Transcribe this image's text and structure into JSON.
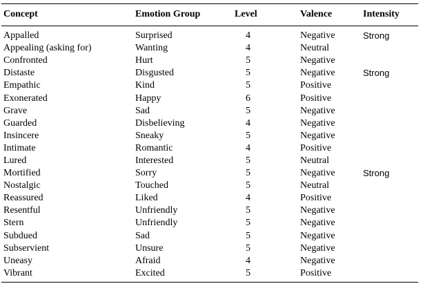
{
  "table": {
    "headers": {
      "concept": "Concept",
      "group": "Emotion Group",
      "level": "Level",
      "valence": "Valence",
      "intensity": "Intensity"
    },
    "rows": [
      {
        "concept": "Appalled",
        "group": "Surprised",
        "level": "4",
        "valence": "Negative",
        "intensity": "Strong"
      },
      {
        "concept": "Appealing (asking for)",
        "group": "Wanting",
        "level": "4",
        "valence": "Neutral",
        "intensity": ""
      },
      {
        "concept": "Confronted",
        "group": "Hurt",
        "level": "5",
        "valence": "Negative",
        "intensity": ""
      },
      {
        "concept": "Distaste",
        "group": "Disgusted",
        "level": "5",
        "valence": "Negative",
        "intensity": "Strong"
      },
      {
        "concept": "Empathic",
        "group": "Kind",
        "level": "5",
        "valence": "Positive",
        "intensity": ""
      },
      {
        "concept": "Exonerated",
        "group": "Happy",
        "level": "6",
        "valence": "Positive",
        "intensity": ""
      },
      {
        "concept": "Grave",
        "group": "Sad",
        "level": "5",
        "valence": "Negative",
        "intensity": ""
      },
      {
        "concept": "Guarded",
        "group": "Disbelieving",
        "level": "4",
        "valence": "Negative",
        "intensity": ""
      },
      {
        "concept": "Insincere",
        "group": "Sneaky",
        "level": "5",
        "valence": "Negative",
        "intensity": ""
      },
      {
        "concept": "Intimate",
        "group": "Romantic",
        "level": "4",
        "valence": "Positive",
        "intensity": ""
      },
      {
        "concept": "Lured",
        "group": "Interested",
        "level": "5",
        "valence": "Neutral",
        "intensity": ""
      },
      {
        "concept": "Mortified",
        "group": "Sorry",
        "level": "5",
        "valence": "Negative",
        "intensity": "Strong"
      },
      {
        "concept": "Nostalgic",
        "group": "Touched",
        "level": "5",
        "valence": "Neutral",
        "intensity": ""
      },
      {
        "concept": "Reassured",
        "group": "Liked",
        "level": "4",
        "valence": "Positive",
        "intensity": ""
      },
      {
        "concept": "Resentful",
        "group": "Unfriendly",
        "level": "5",
        "valence": "Negative",
        "intensity": ""
      },
      {
        "concept": "Stern",
        "group": "Unfriendly",
        "level": "5",
        "valence": "Negative",
        "intensity": ""
      },
      {
        "concept": "Subdued",
        "group": "Sad",
        "level": "5",
        "valence": "Negative",
        "intensity": ""
      },
      {
        "concept": "Subservient",
        "group": "Unsure",
        "level": "5",
        "valence": "Negative",
        "intensity": ""
      },
      {
        "concept": "Uneasy",
        "group": "Afraid",
        "level": "4",
        "valence": "Negative",
        "intensity": ""
      },
      {
        "concept": "Vibrant",
        "group": "Excited",
        "level": "5",
        "valence": "Positive",
        "intensity": ""
      }
    ]
  }
}
